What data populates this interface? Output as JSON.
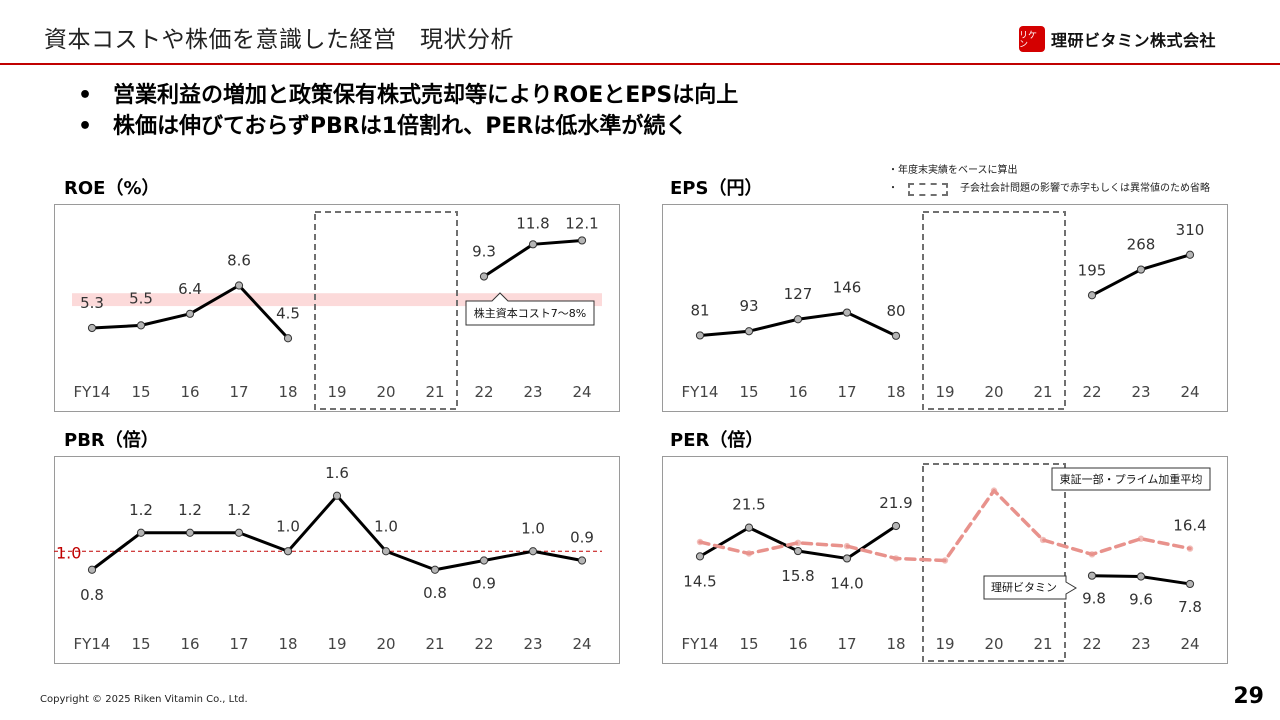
{
  "header": {
    "title": "資本コストや株価を意識した経営　現状分析",
    "logo_mark": "リケン",
    "logo_text": "理研ビタミン株式会社"
  },
  "bullets": [
    "営業利益の増加と政策保有株式売却等によりROEとEPSは向上",
    "株価は伸びておらずPBRは1倍割れ、PERは低水準が続く"
  ],
  "notes": {
    "line1": "・年度末実績をベースに算出",
    "line2_prefix": "・",
    "line2": "子会社会計問題の影響で赤字もしくは異常値のため省略"
  },
  "footer": {
    "copyright": "Copyright © 2025 Riken Vitamin Co., Ltd.",
    "page": "29"
  },
  "colors": {
    "accent": "#c00000",
    "band": "#fcdada",
    "line": "#000000",
    "marker": "#b5b5b5",
    "market_line": "#e8928c",
    "dash_box": "#707070"
  },
  "chart_data": [
    {
      "id": "roe",
      "type": "line",
      "title": "ROE（%）",
      "categories": [
        "FY14",
        "15",
        "16",
        "17",
        "18",
        "19",
        "20",
        "21",
        "22",
        "23",
        "24"
      ],
      "series": [
        {
          "values": [
            5.3,
            5.5,
            6.4,
            8.6,
            4.5,
            null,
            null,
            null,
            9.3,
            11.8,
            12.1
          ]
        }
      ],
      "labels": [
        "5.3",
        "5.5",
        "6.4",
        "8.6",
        "4.5",
        "",
        "",
        "",
        "9.3",
        "11.8",
        "12.1"
      ],
      "band": {
        "from": 7,
        "to": 8,
        "label": "株主資本コスト7～8%"
      },
      "omitted_range": [
        "19",
        "21"
      ],
      "ylim": [
        2.5,
        14
      ]
    },
    {
      "id": "eps",
      "type": "line",
      "title": "EPS（円）",
      "categories": [
        "FY14",
        "15",
        "16",
        "17",
        "18",
        "19",
        "20",
        "21",
        "22",
        "23",
        "24"
      ],
      "series": [
        {
          "values": [
            81,
            93,
            127,
            146,
            80,
            null,
            null,
            null,
            195,
            268,
            310
          ]
        }
      ],
      "labels": [
        "81",
        "93",
        "127",
        "146",
        "80",
        "",
        "",
        "",
        "195",
        "268",
        "310"
      ],
      "omitted_range": [
        "19",
        "21"
      ],
      "ylim": [
        0,
        420
      ]
    },
    {
      "id": "pbr",
      "type": "line",
      "title": "PBR（倍）",
      "categories": [
        "FY14",
        "15",
        "16",
        "17",
        "18",
        "19",
        "20",
        "21",
        "22",
        "23",
        "24"
      ],
      "series": [
        {
          "values": [
            0.8,
            1.2,
            1.2,
            1.2,
            1.0,
            1.6,
            1.0,
            0.8,
            0.9,
            1.0,
            0.9
          ]
        }
      ],
      "labels": [
        "0.8",
        "1.2",
        "1.2",
        "1.2",
        "1.0",
        "1.6",
        "1.0",
        "0.8",
        "0.9",
        "1.0",
        "0.9"
      ],
      "reference": {
        "value": 1.0,
        "label": "1.0"
      },
      "ylim": [
        0.3,
        1.9
      ]
    },
    {
      "id": "per",
      "type": "line",
      "title": "PER（倍）",
      "categories": [
        "FY14",
        "15",
        "16",
        "17",
        "18",
        "19",
        "20",
        "21",
        "22",
        "23",
        "24"
      ],
      "series": [
        {
          "name": "理研ビタミン",
          "values": [
            14.5,
            21.5,
            15.8,
            14.0,
            21.9,
            null,
            null,
            null,
            9.8,
            9.6,
            7.8
          ]
        },
        {
          "name": "東証一部・プライム加重平均",
          "values": [
            18.0,
            15.2,
            17.8,
            17.0,
            14.0,
            13.5,
            30.5,
            18.5,
            15.0,
            18.8,
            16.4
          ]
        }
      ],
      "labels": [
        "14.5",
        "21.5",
        "15.8",
        "14.0",
        "21.9",
        "",
        "",
        "",
        "9.8",
        "9.6",
        "7.8"
      ],
      "market_labels": [
        "",
        "",
        "",
        "",
        "",
        "",
        "",
        "",
        "",
        "",
        "16.4"
      ],
      "omitted_range": [
        "19",
        "21"
      ],
      "ylim": [
        0,
        36
      ]
    }
  ]
}
